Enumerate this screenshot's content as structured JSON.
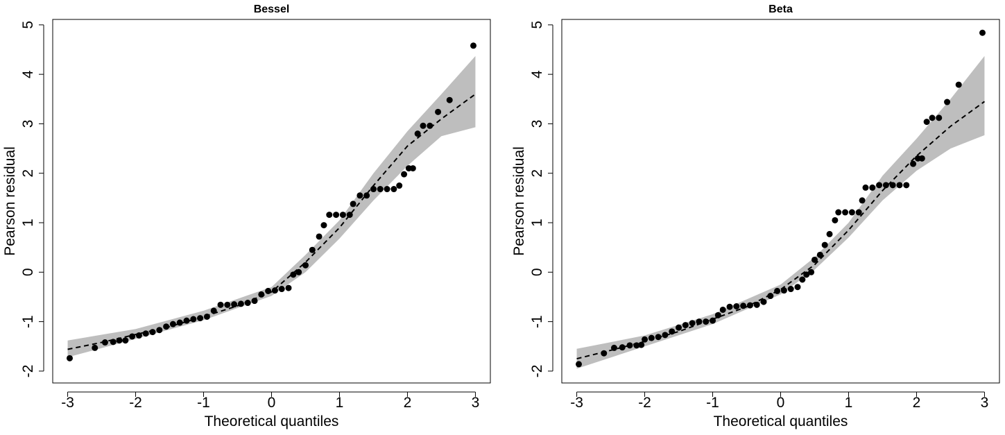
{
  "chart_data": [
    {
      "type": "scatter",
      "title": "Bessel",
      "xlabel": "Theoretical quantiles",
      "ylabel": "Pearson residual",
      "xlim": [
        -3.22,
        3.22
      ],
      "ylim": [
        -2.24,
        5.11
      ],
      "xticks": [
        -3,
        -2,
        -1,
        0,
        1,
        2,
        3
      ],
      "yticks": [
        -2,
        -1,
        0,
        1,
        2,
        3,
        4,
        5
      ],
      "point_color": "#000000",
      "band_color": "#bebebe",
      "line_color": "#000000",
      "x": [
        -2.97,
        -2.6,
        -2.45,
        -2.33,
        -2.24,
        -2.15,
        -2.05,
        -1.95,
        -1.85,
        -1.75,
        -1.65,
        -1.55,
        -1.45,
        -1.35,
        -1.25,
        -1.15,
        -1.05,
        -0.95,
        -0.85,
        -0.75,
        -0.65,
        -0.55,
        -0.45,
        -0.35,
        -0.25,
        -0.15,
        -0.05,
        0.05,
        0.15,
        0.25,
        0.32,
        0.4,
        0.5,
        0.6,
        0.7,
        0.77,
        0.85,
        0.95,
        1.05,
        1.15,
        1.2,
        1.3,
        1.4,
        1.5,
        1.6,
        1.7,
        1.8,
        1.88,
        1.95,
        2.02,
        2.08,
        2.15,
        2.23,
        2.33,
        2.45,
        2.62,
        2.97
      ],
      "values": [
        -1.74,
        -1.53,
        -1.42,
        -1.41,
        -1.38,
        -1.38,
        -1.3,
        -1.28,
        -1.24,
        -1.21,
        -1.17,
        -1.1,
        -1.05,
        -1.02,
        -0.98,
        -0.95,
        -0.93,
        -0.9,
        -0.78,
        -0.66,
        -0.66,
        -0.65,
        -0.64,
        -0.62,
        -0.58,
        -0.45,
        -0.38,
        -0.37,
        -0.34,
        -0.32,
        -0.05,
        0.0,
        0.14,
        0.45,
        0.72,
        0.95,
        1.16,
        1.16,
        1.16,
        1.16,
        1.38,
        1.55,
        1.55,
        1.68,
        1.68,
        1.68,
        1.68,
        1.75,
        1.98,
        2.1,
        2.1,
        2.8,
        2.96,
        2.96,
        3.24,
        3.48,
        4.58
      ],
      "band_x": [
        -3,
        -2,
        -1,
        0,
        0.5,
        1,
        1.5,
        2,
        2.5,
        3
      ],
      "band_lower": [
        -1.72,
        -1.35,
        -0.97,
        -0.48,
        0.0,
        0.68,
        1.45,
        2.15,
        2.75,
        2.93
      ],
      "band_upper": [
        -1.38,
        -1.15,
        -0.78,
        -0.3,
        0.35,
        1.05,
        2.0,
        2.85,
        3.6,
        4.37
      ],
      "line_x": [
        -3,
        -2.5,
        -2,
        -1.5,
        -1,
        -0.5,
        0,
        0.5,
        1,
        1.5,
        2,
        2.5,
        3
      ],
      "line_values": [
        -1.56,
        -1.42,
        -1.26,
        -1.1,
        -0.9,
        -0.68,
        -0.4,
        0.2,
        0.9,
        1.75,
        2.55,
        3.1,
        3.6
      ]
    },
    {
      "type": "scatter",
      "title": "Beta",
      "xlabel": "Theoretical quantiles",
      "ylabel": "Pearson residual",
      "xlim": [
        -3.22,
        3.22
      ],
      "ylim": [
        -2.24,
        5.11
      ],
      "xticks": [
        -3,
        -2,
        -1,
        0,
        1,
        2,
        3
      ],
      "yticks": [
        -2,
        -1,
        0,
        1,
        2,
        3,
        4,
        5
      ],
      "point_color": "#000000",
      "band_color": "#bebebe",
      "line_color": "#000000",
      "x": [
        -2.97,
        -2.6,
        -2.45,
        -2.33,
        -2.22,
        -2.12,
        -2.05,
        -2.0,
        -1.9,
        -1.8,
        -1.7,
        -1.6,
        -1.5,
        -1.4,
        -1.3,
        -1.2,
        -1.1,
        -1.0,
        -0.92,
        -0.85,
        -0.75,
        -0.65,
        -0.55,
        -0.45,
        -0.35,
        -0.25,
        -0.15,
        -0.05,
        0.05,
        0.15,
        0.25,
        0.32,
        0.38,
        0.45,
        0.5,
        0.58,
        0.65,
        0.72,
        0.8,
        0.85,
        0.95,
        1.05,
        1.15,
        1.2,
        1.25,
        1.35,
        1.45,
        1.55,
        1.65,
        1.75,
        1.85,
        1.95,
        2.02,
        2.08,
        2.15,
        2.23,
        2.33,
        2.45,
        2.62,
        2.97
      ],
      "values": [
        -1.86,
        -1.64,
        -1.53,
        -1.52,
        -1.48,
        -1.48,
        -1.47,
        -1.36,
        -1.33,
        -1.31,
        -1.27,
        -1.2,
        -1.12,
        -1.07,
        -1.03,
        -1.0,
        -1.0,
        -0.98,
        -0.87,
        -0.76,
        -0.7,
        -0.69,
        -0.68,
        -0.67,
        -0.66,
        -0.6,
        -0.48,
        -0.38,
        -0.37,
        -0.34,
        -0.3,
        -0.15,
        -0.05,
        0.0,
        0.25,
        0.35,
        0.55,
        0.77,
        1.05,
        1.21,
        1.21,
        1.21,
        1.21,
        1.45,
        1.71,
        1.71,
        1.76,
        1.76,
        1.76,
        1.76,
        1.76,
        2.19,
        2.3,
        2.3,
        3.04,
        3.12,
        3.12,
        3.44,
        3.79,
        4.84
      ],
      "band_x": [
        -3,
        -2,
        -1,
        0,
        0.5,
        1,
        1.5,
        2,
        2.5,
        3
      ],
      "band_lower": [
        -1.95,
        -1.5,
        -1.05,
        -0.45,
        0.05,
        0.7,
        1.45,
        2.05,
        2.5,
        2.77
      ],
      "band_upper": [
        -1.55,
        -1.28,
        -0.85,
        -0.25,
        0.3,
        1.0,
        1.95,
        2.7,
        3.5,
        4.37
      ],
      "line_x": [
        -3,
        -2.5,
        -2,
        -1.5,
        -1,
        -0.5,
        0,
        0.5,
        1,
        1.5,
        2,
        2.5,
        3
      ],
      "line_values": [
        -1.75,
        -1.58,
        -1.4,
        -1.2,
        -0.95,
        -0.7,
        -0.35,
        0.15,
        0.85,
        1.65,
        2.35,
        2.95,
        3.45
      ]
    }
  ]
}
